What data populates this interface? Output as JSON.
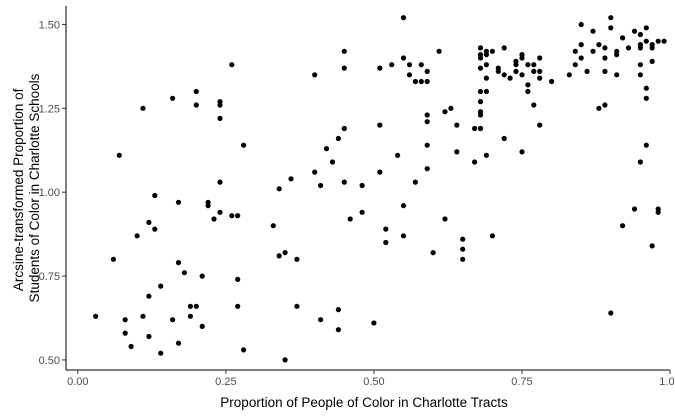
{
  "chart_data": {
    "type": "scatter",
    "xlabel": "Proportion of People of Color in Charlotte Tracts",
    "ylabel_lines": [
      "Arcsine-transformed Proportion of",
      "Students of Color in Charlotte Schools"
    ],
    "xlim": [
      -0.02,
      1.0
    ],
    "ylim": [
      0.47,
      1.555
    ],
    "x_ticks": [
      0.0,
      0.25,
      0.5,
      0.75,
      1.0
    ],
    "x_tick_labels": [
      "0.00",
      "0.25",
      "0.50",
      "0.75",
      "1.00"
    ],
    "y_ticks": [
      0.5,
      0.75,
      1.0,
      1.25,
      1.5
    ],
    "y_tick_labels": [
      "0.50",
      "0.75",
      "1.00",
      "1.25",
      "1.50"
    ],
    "grid": false,
    "point_color": "#000000",
    "points": [
      [
        0.03,
        0.63
      ],
      [
        0.06,
        0.8
      ],
      [
        0.07,
        1.11
      ],
      [
        0.08,
        0.62
      ],
      [
        0.08,
        0.58
      ],
      [
        0.09,
        0.54
      ],
      [
        0.1,
        0.87
      ],
      [
        0.11,
        1.25
      ],
      [
        0.11,
        0.63
      ],
      [
        0.12,
        0.69
      ],
      [
        0.12,
        0.91
      ],
      [
        0.12,
        0.57
      ],
      [
        0.13,
        0.99
      ],
      [
        0.13,
        0.89
      ],
      [
        0.14,
        0.52
      ],
      [
        0.14,
        0.72
      ],
      [
        0.16,
        1.28
      ],
      [
        0.16,
        0.62
      ],
      [
        0.17,
        0.97
      ],
      [
        0.17,
        0.79
      ],
      [
        0.17,
        0.55
      ],
      [
        0.18,
        0.76
      ],
      [
        0.19,
        0.66
      ],
      [
        0.19,
        0.63
      ],
      [
        0.2,
        1.3
      ],
      [
        0.2,
        1.26
      ],
      [
        0.2,
        0.66
      ],
      [
        0.21,
        0.6
      ],
      [
        0.21,
        0.75
      ],
      [
        0.22,
        0.96
      ],
      [
        0.22,
        0.97
      ],
      [
        0.23,
        0.92
      ],
      [
        0.24,
        1.27
      ],
      [
        0.24,
        1.26
      ],
      [
        0.24,
        1.22
      ],
      [
        0.24,
        1.03
      ],
      [
        0.24,
        0.94
      ],
      [
        0.26,
        1.38
      ],
      [
        0.26,
        0.93
      ],
      [
        0.27,
        0.93
      ],
      [
        0.27,
        0.74
      ],
      [
        0.27,
        0.66
      ],
      [
        0.28,
        1.14
      ],
      [
        0.28,
        0.53
      ],
      [
        0.33,
        0.9
      ],
      [
        0.34,
        1.01
      ],
      [
        0.34,
        0.81
      ],
      [
        0.35,
        0.82
      ],
      [
        0.35,
        0.5
      ],
      [
        0.36,
        1.04
      ],
      [
        0.37,
        0.8
      ],
      [
        0.37,
        0.66
      ],
      [
        0.4,
        1.35
      ],
      [
        0.4,
        1.06
      ],
      [
        0.41,
        1.02
      ],
      [
        0.41,
        0.62
      ],
      [
        0.42,
        1.13
      ],
      [
        0.43,
        1.09
      ],
      [
        0.44,
        1.16
      ],
      [
        0.44,
        0.65
      ],
      [
        0.44,
        0.59
      ],
      [
        0.45,
        1.42
      ],
      [
        0.45,
        1.37
      ],
      [
        0.45,
        1.19
      ],
      [
        0.45,
        1.03
      ],
      [
        0.46,
        0.92
      ],
      [
        0.48,
        1.02
      ],
      [
        0.48,
        0.94
      ],
      [
        0.5,
        0.61
      ],
      [
        0.51,
        1.37
      ],
      [
        0.51,
        1.2
      ],
      [
        0.51,
        1.06
      ],
      [
        0.52,
        0.89
      ],
      [
        0.52,
        0.85
      ],
      [
        0.53,
        1.38
      ],
      [
        0.54,
        1.11
      ],
      [
        0.55,
        1.52
      ],
      [
        0.55,
        1.4
      ],
      [
        0.55,
        0.96
      ],
      [
        0.55,
        0.87
      ],
      [
        0.56,
        1.38
      ],
      [
        0.56,
        1.35
      ],
      [
        0.57,
        1.33
      ],
      [
        0.57,
        1.03
      ],
      [
        0.58,
        1.38
      ],
      [
        0.58,
        1.33
      ],
      [
        0.59,
        1.36
      ],
      [
        0.59,
        1.33
      ],
      [
        0.59,
        1.23
      ],
      [
        0.59,
        1.21
      ],
      [
        0.59,
        1.14
      ],
      [
        0.59,
        1.07
      ],
      [
        0.6,
        0.82
      ],
      [
        0.61,
        1.42
      ],
      [
        0.62,
        1.24
      ],
      [
        0.62,
        0.92
      ],
      [
        0.63,
        1.25
      ],
      [
        0.64,
        1.2
      ],
      [
        0.64,
        1.12
      ],
      [
        0.65,
        0.86
      ],
      [
        0.65,
        0.83
      ],
      [
        0.65,
        0.8
      ],
      [
        0.67,
        1.19
      ],
      [
        0.67,
        1.09
      ],
      [
        0.68,
        1.43
      ],
      [
        0.68,
        1.41
      ],
      [
        0.68,
        1.4
      ],
      [
        0.68,
        1.37
      ],
      [
        0.68,
        1.3
      ],
      [
        0.68,
        1.27
      ],
      [
        0.68,
        1.24
      ],
      [
        0.68,
        1.23
      ],
      [
        0.68,
        1.19
      ],
      [
        0.69,
        1.42
      ],
      [
        0.69,
        1.41
      ],
      [
        0.69,
        1.38
      ],
      [
        0.69,
        1.34
      ],
      [
        0.69,
        1.3
      ],
      [
        0.69,
        1.11
      ],
      [
        0.7,
        0.87
      ],
      [
        0.7,
        1.42
      ],
      [
        0.71,
        1.37
      ],
      [
        0.71,
        1.36
      ],
      [
        0.72,
        1.35
      ],
      [
        0.72,
        1.43
      ],
      [
        0.72,
        1.16
      ],
      [
        0.73,
        1.34
      ],
      [
        0.74,
        1.39
      ],
      [
        0.74,
        1.38
      ],
      [
        0.74,
        1.36
      ],
      [
        0.75,
        1.41
      ],
      [
        0.75,
        1.4
      ],
      [
        0.75,
        1.35
      ],
      [
        0.75,
        1.12
      ],
      [
        0.76,
        1.38
      ],
      [
        0.76,
        1.32
      ],
      [
        0.76,
        1.3
      ],
      [
        0.77,
        1.38
      ],
      [
        0.77,
        1.36
      ],
      [
        0.77,
        1.26
      ],
      [
        0.78,
        1.4
      ],
      [
        0.78,
        1.36
      ],
      [
        0.78,
        1.34
      ],
      [
        0.78,
        1.2
      ],
      [
        0.8,
        1.33
      ],
      [
        0.83,
        1.35
      ],
      [
        0.84,
        1.42
      ],
      [
        0.84,
        1.38
      ],
      [
        0.85,
        1.5
      ],
      [
        0.85,
        1.44
      ],
      [
        0.85,
        1.4
      ],
      [
        0.86,
        1.36
      ],
      [
        0.87,
        1.48
      ],
      [
        0.87,
        1.42
      ],
      [
        0.88,
        1.25
      ],
      [
        0.88,
        1.44
      ],
      [
        0.89,
        1.4
      ],
      [
        0.89,
        1.43
      ],
      [
        0.89,
        1.26
      ],
      [
        0.89,
        1.36
      ],
      [
        0.9,
        1.52
      ],
      [
        0.9,
        1.49
      ],
      [
        0.9,
        0.64
      ],
      [
        0.91,
        1.35
      ],
      [
        0.91,
        1.41
      ],
      [
        0.91,
        1.42
      ],
      [
        0.92,
        0.9
      ],
      [
        0.92,
        1.46
      ],
      [
        0.93,
        1.43
      ],
      [
        0.94,
        1.48
      ],
      [
        0.94,
        0.95
      ],
      [
        0.95,
        1.47
      ],
      [
        0.95,
        1.44
      ],
      [
        0.95,
        1.43
      ],
      [
        0.95,
        1.38
      ],
      [
        0.95,
        1.35
      ],
      [
        0.95,
        1.09
      ],
      [
        0.96,
        1.49
      ],
      [
        0.96,
        1.45
      ],
      [
        0.96,
        1.31
      ],
      [
        0.96,
        1.28
      ],
      [
        0.96,
        1.14
      ],
      [
        0.97,
        1.44
      ],
      [
        0.97,
        0.84
      ],
      [
        0.97,
        1.39
      ],
      [
        0.97,
        1.43
      ],
      [
        0.98,
        1.45
      ],
      [
        0.98,
        0.95
      ],
      [
        0.98,
        0.94
      ],
      [
        0.99,
        1.45
      ]
    ]
  }
}
